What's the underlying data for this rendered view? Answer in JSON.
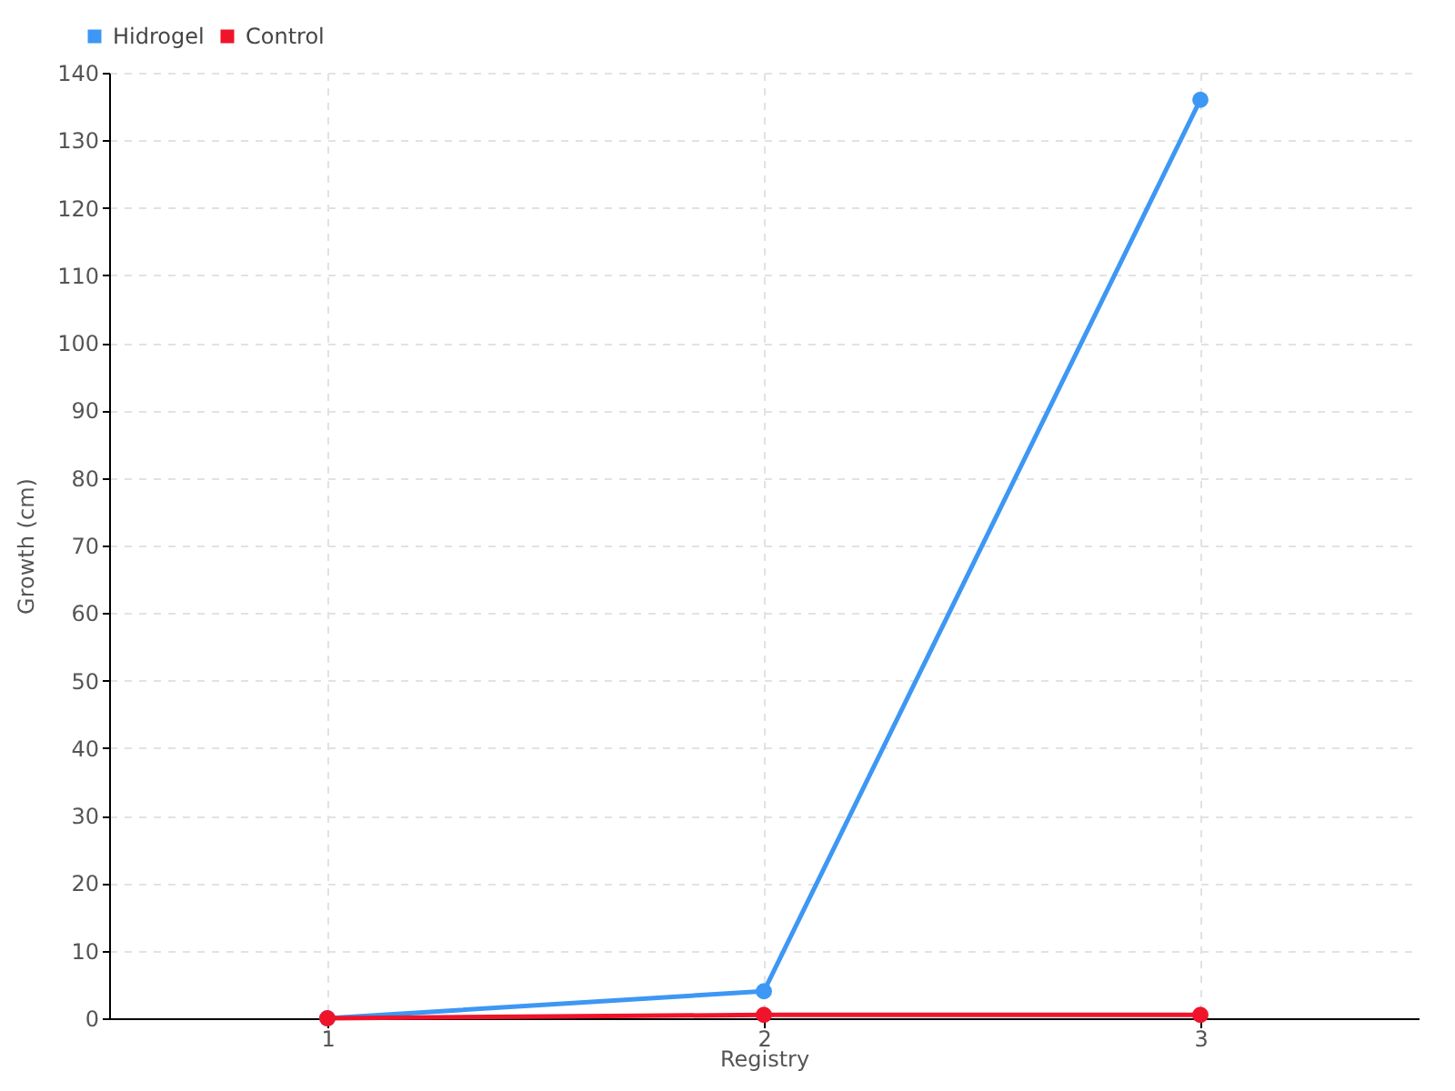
{
  "chart_data": {
    "type": "line",
    "xlabel": "Registry",
    "ylabel": "Growth (cm)",
    "categories": [
      "1",
      "2",
      "3"
    ],
    "series": [
      {
        "name": "Hidrogel",
        "color": "#3d97f4",
        "values": [
          0,
          4,
          136
        ]
      },
      {
        "name": "Control",
        "color": "#f0142a",
        "values": [
          0,
          0.5,
          0.5
        ]
      }
    ],
    "ylim": [
      0,
      140
    ],
    "yticks": [
      0,
      10,
      20,
      30,
      40,
      50,
      60,
      70,
      80,
      90,
      100,
      110,
      120,
      130,
      140
    ],
    "grid": true,
    "legend": "top left",
    "marker": "circle",
    "line_style": "solid"
  }
}
